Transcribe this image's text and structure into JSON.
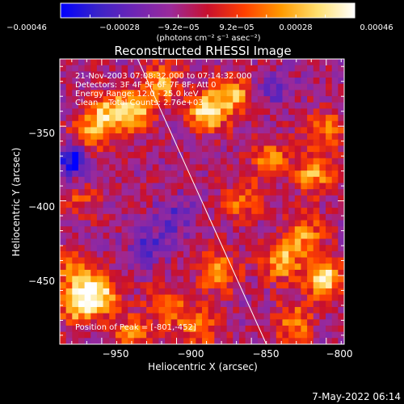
{
  "chart_data": {
    "type": "heatmap",
    "title": "Reconstructed RHESSI Image",
    "xlabel": "Heliocentric X (arcsec)",
    "ylabel": "Heliocentric Y (arcsec)",
    "xlim": [
      -978,
      -788
    ],
    "ylim": [
      -496,
      -305
    ],
    "xticks": [
      -950,
      -900,
      -850,
      -800
    ],
    "yticks": [
      -350,
      -400,
      -450
    ],
    "xtick_labels": [
      "−950",
      "−900",
      "−850",
      "−800"
    ],
    "ytick_labels": [
      "−350",
      "−400",
      "−450"
    ],
    "colorbar": {
      "range": [
        -0.00046,
        0.00046
      ],
      "tick_labels": [
        "−0.00046",
        "−0.00028",
        "−9.2e−05",
        "9.2e−05",
        "0.00028",
        "0.00046"
      ],
      "units_label": "(photons cm⁻² s⁻¹ asec⁻²)",
      "colormap": [
        "#0000ff",
        "#3a23c8",
        "#6e25b5",
        "#9b2a9a",
        "#c8102d",
        "#ff4000",
        "#ff9a00",
        "#ffe070",
        "#ffffff"
      ]
    },
    "annotations": [
      "21-Nov-2003 07:08:32.000 to 07:14:32.000",
      "Detectors: 3F 4F 5F 6F 7F 8F; Att 0",
      "Energy Range: 12.0 - 25.0 keV",
      "Clean    Total Counts: 2.76e+03"
    ],
    "peak_label": "Position of Peak = [-801,-452]",
    "limb_line": [
      [
        -926,
        -305
      ],
      [
        -840,
        -496
      ]
    ],
    "grid": false,
    "image_grid_size": 46,
    "bright_sources": [
      {
        "x": -949,
        "y": -343,
        "intensity": 0.00036
      },
      {
        "x": -930,
        "y": -340,
        "intensity": 0.00044
      },
      {
        "x": -880,
        "y": -340,
        "intensity": 0.00046
      },
      {
        "x": -910,
        "y": -322,
        "intensity": 0.00034
      },
      {
        "x": -862,
        "y": -330,
        "intensity": 0.00034
      },
      {
        "x": -960,
        "y": -360,
        "intensity": 0.0003
      },
      {
        "x": -838,
        "y": -372,
        "intensity": 0.00028
      },
      {
        "x": -808,
        "y": -382,
        "intensity": 0.00032
      },
      {
        "x": -800,
        "y": -352,
        "intensity": 0.00024
      },
      {
        "x": -856,
        "y": -400,
        "intensity": 0.00024
      },
      {
        "x": -815,
        "y": -422,
        "intensity": 0.0003
      },
      {
        "x": -801,
        "y": -452,
        "intensity": 0.00046
      },
      {
        "x": -830,
        "y": -440,
        "intensity": 0.00036
      },
      {
        "x": -872,
        "y": -448,
        "intensity": 0.00032
      },
      {
        "x": -952,
        "y": -462,
        "intensity": 0.00044
      },
      {
        "x": -966,
        "y": -470,
        "intensity": 0.0004
      },
      {
        "x": -968,
        "y": -448,
        "intensity": 0.00026
      },
      {
        "x": -906,
        "y": -470,
        "intensity": 0.0003
      },
      {
        "x": -885,
        "y": -485,
        "intensity": 0.00026
      },
      {
        "x": -822,
        "y": -482,
        "intensity": 0.0003
      },
      {
        "x": -930,
        "y": -488,
        "intensity": 0.00024
      },
      {
        "x": -965,
        "y": -398,
        "intensity": 0.00016
      }
    ],
    "dark_sources": [
      {
        "x": -968,
        "y": -372,
        "intensity": -0.00042
      },
      {
        "x": -920,
        "y": -430,
        "intensity": -0.0002
      },
      {
        "x": -900,
        "y": -410,
        "intensity": -0.00018
      },
      {
        "x": -835,
        "y": -325,
        "intensity": -0.00014
      }
    ]
  },
  "footer": {
    "date": "7-May-2022 06:14"
  }
}
